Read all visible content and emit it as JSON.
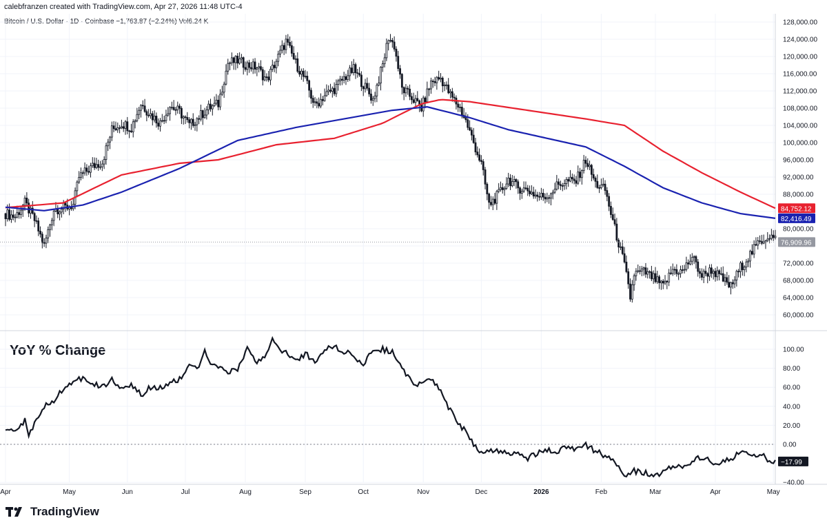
{
  "header": {
    "created_by": "calebfranzen created with TradingView.com, Apr 27, 2026 11:48 UTC-4",
    "symbol_line": "Bitcoin / U.S. Dollar · 1D · Coinbase  −1,763.87 (−2.24%)  Vol6.24 K"
  },
  "branding": {
    "name": "TradingView"
  },
  "colors": {
    "ma_red": "#e8212f",
    "ma_blue": "#1a22b0",
    "candle": "#131722",
    "grid": "#f0f3fa",
    "last_price_badge": "#9598a1"
  },
  "chart_data": [
    {
      "type": "candlestick",
      "title": "Bitcoin / U.S. Dollar · 1D · Coinbase",
      "ylim": [
        58000,
        129000
      ],
      "y_ticks": [
        60000,
        64000,
        68000,
        72000,
        76000,
        80000,
        84000,
        88000,
        92000,
        96000,
        100000,
        104000,
        108000,
        112000,
        116000,
        120000,
        124000,
        128000
      ],
      "y_tick_labels": [
        "60,000.00",
        "64,000.00",
        "68,000.00",
        "72,000.00",
        "",
        "80,000.00",
        "",
        "88,000.00",
        "92,000.00",
        "96,000.00",
        "100,000.00",
        "104,000.00",
        "108,000.00",
        "112,000.00",
        "116,000.00",
        "120,000.00",
        "124,000.00",
        "128,000.00"
      ],
      "x_month_labels": [
        "Apr",
        "May",
        "Jun",
        "Jul",
        "Aug",
        "Sep",
        "Oct",
        "Nov",
        "Dec",
        "2026",
        "Feb",
        "Mar",
        "Apr",
        "May"
      ],
      "close_path": [
        [
          0,
          83500
        ],
        [
          5,
          82800
        ],
        [
          10,
          86000
        ],
        [
          15,
          82000
        ],
        [
          20,
          76000
        ],
        [
          25,
          84500
        ],
        [
          30,
          84800
        ],
        [
          35,
          85500
        ],
        [
          38,
          92000
        ],
        [
          45,
          94500
        ],
        [
          50,
          95500
        ],
        [
          55,
          103000
        ],
        [
          60,
          104500
        ],
        [
          65,
          103500
        ],
        [
          70,
          109000
        ],
        [
          75,
          106500
        ],
        [
          80,
          104500
        ],
        [
          85,
          108500
        ],
        [
          90,
          107200
        ],
        [
          95,
          104000
        ],
        [
          100,
          106000
        ],
        [
          105,
          108000
        ],
        [
          110,
          109000
        ],
        [
          115,
          118500
        ],
        [
          120,
          119000
        ],
        [
          125,
          118000
        ],
        [
          130,
          117500
        ],
        [
          135,
          114500
        ],
        [
          140,
          119000
        ],
        [
          145,
          123500
        ],
        [
          150,
          118500
        ],
        [
          155,
          114500
        ],
        [
          160,
          108500
        ],
        [
          165,
          111000
        ],
        [
          170,
          112500
        ],
        [
          175,
          115000
        ],
        [
          180,
          117000
        ],
        [
          185,
          113500
        ],
        [
          190,
          110000
        ],
        [
          195,
          118000
        ],
        [
          198,
          124500
        ],
        [
          201,
          122500
        ],
        [
          205,
          112500
        ],
        [
          210,
          110500
        ],
        [
          215,
          108000
        ],
        [
          220,
          114000
        ],
        [
          225,
          115000
        ],
        [
          230,
          111000
        ],
        [
          235,
          108000
        ],
        [
          238,
          105000
        ],
        [
          242,
          100000
        ],
        [
          246,
          95000
        ],
        [
          250,
          85500
        ],
        [
          255,
          88000
        ],
        [
          260,
          91500
        ],
        [
          265,
          89500
        ],
        [
          270,
          89000
        ],
        [
          275,
          87500
        ],
        [
          280,
          87500
        ],
        [
          285,
          90000
        ],
        [
          290,
          91000
        ],
        [
          295,
          91000
        ],
        [
          300,
          96000
        ],
        [
          305,
          90500
        ],
        [
          310,
          89000
        ],
        [
          315,
          80000
        ],
        [
          320,
          71500
        ],
        [
          323,
          64000
        ],
        [
          325,
          69500
        ],
        [
          330,
          70000
        ],
        [
          335,
          68500
        ],
        [
          340,
          66500
        ],
        [
          345,
          70500
        ],
        [
          350,
          70000
        ],
        [
          355,
          73500
        ],
        [
          360,
          69000
        ],
        [
          365,
          70500
        ],
        [
          370,
          68500
        ],
        [
          375,
          66500
        ],
        [
          380,
          71000
        ],
        [
          385,
          74000
        ],
        [
          390,
          77000
        ],
        [
          395,
          78500
        ],
        [
          398,
          77500
        ]
      ],
      "series": [
        {
          "name": "",
          "color": "#e8212f",
          "values": [
            [
              0,
              84900
            ],
            [
              30,
              86000
            ],
            [
              60,
              92500
            ],
            [
              90,
              95200
            ],
            [
              110,
              96000
            ],
            [
              140,
              99500
            ],
            [
              170,
              101000
            ],
            [
              195,
              104500
            ],
            [
              215,
              109000
            ],
            [
              225,
              110000
            ],
            [
              240,
              109500
            ],
            [
              270,
              107500
            ],
            [
              300,
              105500
            ],
            [
              320,
              104000
            ],
            [
              340,
              98000
            ],
            [
              360,
              93000
            ],
            [
              380,
              88500
            ],
            [
              398,
              84752
            ]
          ],
          "last_label": "84,752.12"
        },
        {
          "name": "",
          "color": "#1a22b0",
          "values": [
            [
              0,
              85000
            ],
            [
              20,
              84200
            ],
            [
              40,
              85500
            ],
            [
              60,
              88500
            ],
            [
              90,
              94000
            ],
            [
              120,
              100500
            ],
            [
              150,
              103500
            ],
            [
              175,
              105500
            ],
            [
              200,
              107500
            ],
            [
              218,
              108300
            ],
            [
              240,
              105800
            ],
            [
              260,
              103000
            ],
            [
              280,
              101000
            ],
            [
              300,
              99000
            ],
            [
              320,
              94500
            ],
            [
              340,
              89500
            ],
            [
              360,
              86000
            ],
            [
              380,
              83500
            ],
            [
              398,
              82416
            ]
          ],
          "last_label": "82,416.49"
        }
      ],
      "last_price_label": "76,909.96",
      "last_price": 76909.96
    },
    {
      "type": "line",
      "title": "YoY % Change",
      "ylim": [
        -40,
        110
      ],
      "y_ticks": [
        100,
        80,
        60,
        40,
        20,
        0,
        -40
      ],
      "y_tick_labels": [
        "100.00",
        "80.00",
        "60.00",
        "40.00",
        "20.00",
        "0.00",
        "−40.00"
      ],
      "zero_line": 0,
      "series": [
        {
          "name": "",
          "values": [
            [
              0,
              18
            ],
            [
              5,
              14
            ],
            [
              10,
              25
            ],
            [
              12,
              10
            ],
            [
              15,
              22
            ],
            [
              20,
              40
            ],
            [
              25,
              45
            ],
            [
              30,
              60
            ],
            [
              35,
              65
            ],
            [
              40,
              70
            ],
            [
              45,
              65
            ],
            [
              50,
              60
            ],
            [
              55,
              68
            ],
            [
              60,
              60
            ],
            [
              65,
              62
            ],
            [
              70,
              52
            ],
            [
              75,
              60
            ],
            [
              80,
              60
            ],
            [
              85,
              65
            ],
            [
              90,
              68
            ],
            [
              95,
              82
            ],
            [
              100,
              80
            ],
            [
              103,
              97
            ],
            [
              106,
              85
            ],
            [
              110,
              82
            ],
            [
              115,
              75
            ],
            [
              120,
              80
            ],
            [
              125,
              100
            ],
            [
              127,
              93
            ],
            [
              130,
              85
            ],
            [
              135,
              95
            ],
            [
              138,
              110
            ],
            [
              142,
              100
            ],
            [
              145,
              96
            ],
            [
              150,
              87
            ],
            [
              155,
              95
            ],
            [
              160,
              88
            ],
            [
              165,
              100
            ],
            [
              170,
              103
            ],
            [
              175,
              97
            ],
            [
              180,
              95
            ],
            [
              185,
              82
            ],
            [
              190,
              100
            ],
            [
              195,
              100
            ],
            [
              200,
              97
            ],
            [
              205,
              80
            ],
            [
              210,
              65
            ],
            [
              215,
              63
            ],
            [
              220,
              68
            ],
            [
              225,
              56
            ],
            [
              230,
              35
            ],
            [
              235,
              20
            ],
            [
              240,
              8
            ],
            [
              245,
              -10
            ],
            [
              250,
              -5
            ],
            [
              255,
              -7
            ],
            [
              260,
              -10
            ],
            [
              265,
              -9
            ],
            [
              270,
              -15
            ],
            [
              275,
              -9
            ],
            [
              280,
              -6
            ],
            [
              285,
              -7
            ],
            [
              290,
              -4
            ],
            [
              295,
              -5
            ],
            [
              300,
              -1
            ],
            [
              305,
              -7
            ],
            [
              310,
              -12
            ],
            [
              315,
              -20
            ],
            [
              320,
              -33
            ],
            [
              325,
              -28
            ],
            [
              330,
              -30
            ],
            [
              335,
              -32
            ],
            [
              340,
              -30
            ],
            [
              345,
              -22
            ],
            [
              350,
              -24
            ],
            [
              355,
              -17
            ],
            [
              360,
              -14
            ],
            [
              365,
              -18
            ],
            [
              370,
              -20
            ],
            [
              375,
              -15
            ],
            [
              380,
              -8
            ],
            [
              385,
              -12
            ],
            [
              390,
              -10
            ],
            [
              395,
              -17
            ],
            [
              398,
              -17.99
            ]
          ]
        }
      ],
      "last_value_label": "−17.99"
    }
  ]
}
